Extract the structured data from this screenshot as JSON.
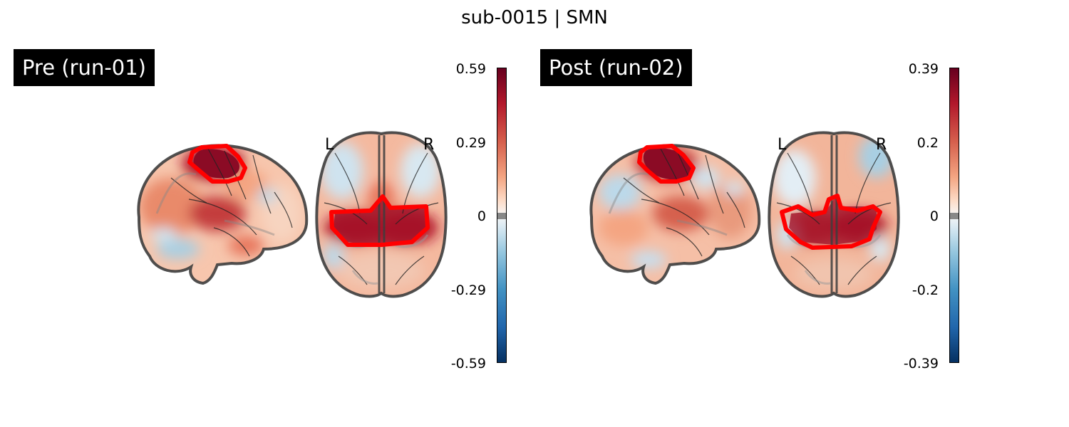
{
  "figure": {
    "title": "sub-0015 | SMN"
  },
  "panels": [
    {
      "label": "Pre (run-01)",
      "colorbar": {
        "ticks": [
          "0.59",
          "0.29",
          "0",
          "-0.29",
          "-0.59"
        ],
        "range": [
          -0.59,
          0.59
        ],
        "colormap": "RdBu_r"
      },
      "orientation_labels": {
        "left": "L",
        "right": "R"
      }
    },
    {
      "label": "Post (run-02)",
      "colorbar": {
        "ticks": [
          "0.39",
          "0.2",
          "0",
          "-0.2",
          "-0.39"
        ],
        "range": [
          -0.39,
          0.39
        ],
        "colormap": "RdBu_r"
      },
      "orientation_labels": {
        "left": "L",
        "right": "R"
      }
    }
  ],
  "colors": {
    "outline": "#ff0000",
    "positive": "#67001f",
    "negative": "#053061",
    "null_band": "#888888"
  }
}
